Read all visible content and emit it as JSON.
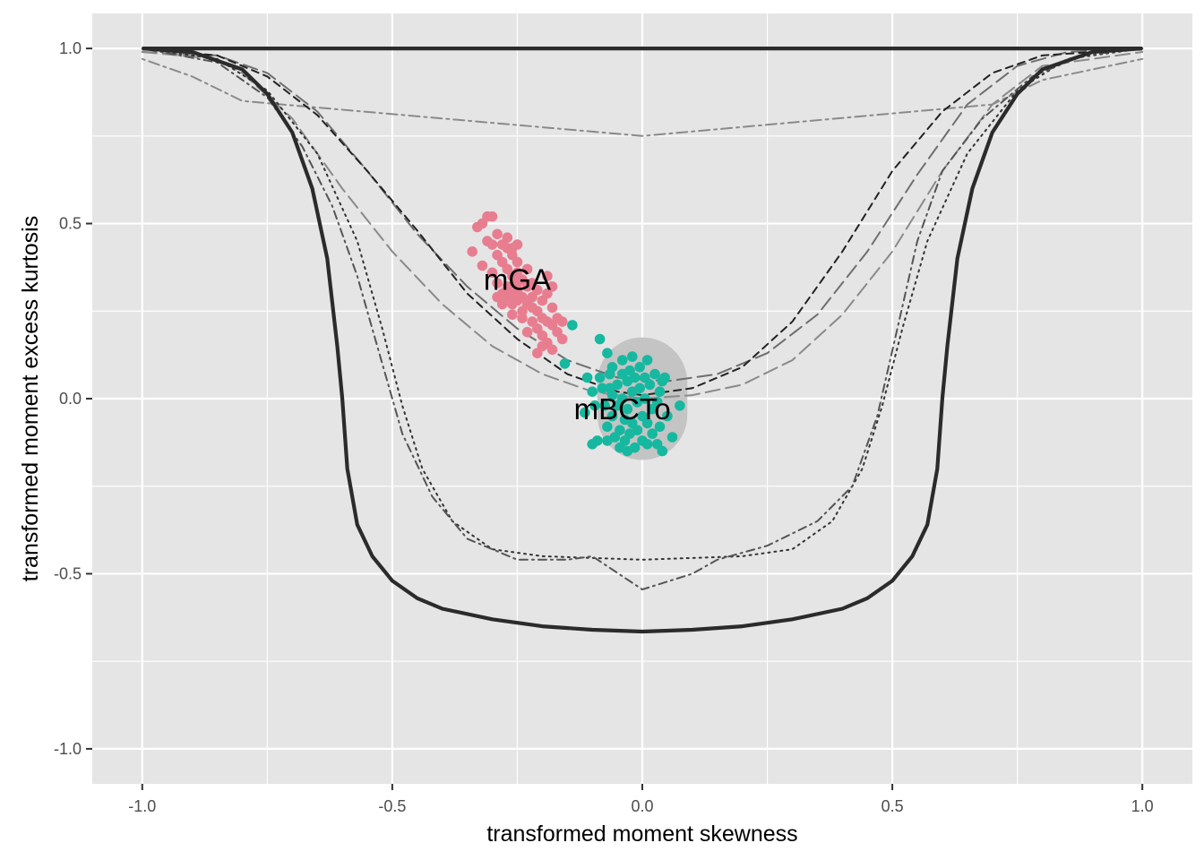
{
  "chart_data": {
    "type": "scatter",
    "xlabel": "transformed moment skewness",
    "ylabel": "transformed moment excess kurtosis",
    "xlim": [
      -1.1,
      1.1
    ],
    "ylim": [
      -1.1,
      1.1
    ],
    "x_ticks": [
      -1.0,
      -0.5,
      0.0,
      0.5,
      1.0
    ],
    "y_ticks": [
      -1.0,
      -0.5,
      0.0,
      0.5,
      1.0
    ],
    "x_tick_labels": [
      "-1.0",
      "-0.5",
      "0.0",
      "0.5",
      "1.0"
    ],
    "y_tick_labels": [
      "-1.0",
      "-0.5",
      "0.0",
      "0.5",
      "1.0"
    ],
    "grid": true,
    "legend": "none",
    "colors": {
      "panel": "#e5e5e5",
      "grid": "#ffffff",
      "mGA": "#e87d90",
      "mBCTo": "#16b8a0",
      "region": "#c4c4c4",
      "boundary": "#2b2b2b",
      "reference": "#555555"
    },
    "annotations": [
      {
        "label": "mGA",
        "x": -0.25,
        "y": 0.34
      },
      {
        "label": "mBCTo",
        "x": -0.04,
        "y": -0.03
      }
    ],
    "shaded_region": {
      "x_center": 0.0,
      "y_center": 0.0,
      "x_halfwidth": 0.09,
      "y_halfwidth": 0.175
    },
    "boundaries": [
      {
        "style": "solid",
        "points": [
          [
            -1.0,
            1.0
          ],
          [
            1.0,
            1.0
          ]
        ]
      },
      {
        "style": "solid",
        "points": [
          [
            -1.0,
            1.0
          ],
          [
            -0.9,
            0.99
          ],
          [
            -0.8,
            0.94
          ],
          [
            -0.75,
            0.87
          ],
          [
            -0.7,
            0.76
          ],
          [
            -0.66,
            0.6
          ],
          [
            -0.63,
            0.4
          ],
          [
            -0.61,
            0.15
          ],
          [
            -0.6,
            0.0
          ],
          [
            -0.59,
            -0.2
          ],
          [
            -0.57,
            -0.36
          ],
          [
            -0.54,
            -0.45
          ],
          [
            -0.5,
            -0.52
          ],
          [
            -0.45,
            -0.57
          ],
          [
            -0.4,
            -0.6
          ],
          [
            -0.3,
            -0.63
          ],
          [
            -0.2,
            -0.65
          ],
          [
            -0.1,
            -0.66
          ],
          [
            0.0,
            -0.665
          ],
          [
            0.1,
            -0.66
          ],
          [
            0.2,
            -0.65
          ],
          [
            0.3,
            -0.63
          ],
          [
            0.4,
            -0.6
          ],
          [
            0.45,
            -0.57
          ],
          [
            0.5,
            -0.52
          ],
          [
            0.54,
            -0.45
          ],
          [
            0.57,
            -0.36
          ],
          [
            0.59,
            -0.2
          ],
          [
            0.6,
            0.0
          ],
          [
            0.61,
            0.15
          ],
          [
            0.63,
            0.4
          ],
          [
            0.66,
            0.6
          ],
          [
            0.7,
            0.76
          ],
          [
            0.75,
            0.87
          ],
          [
            0.8,
            0.94
          ],
          [
            0.9,
            0.99
          ],
          [
            1.0,
            1.0
          ]
        ]
      }
    ],
    "reference_curves": [
      {
        "style": "dashdot",
        "color": "#8a8a8a",
        "points": [
          [
            -1.0,
            0.97
          ],
          [
            -0.9,
            0.92
          ],
          [
            -0.8,
            0.85
          ],
          [
            0.0,
            0.75
          ],
          [
            0.7,
            0.84
          ],
          [
            0.8,
            0.91
          ],
          [
            1.0,
            0.97
          ]
        ]
      },
      {
        "style": "longdash",
        "color": "#6f6f6f",
        "points": [
          [
            -1.0,
            0.99
          ],
          [
            -0.85,
            0.98
          ],
          [
            -0.75,
            0.93
          ],
          [
            -0.65,
            0.82
          ],
          [
            -0.55,
            0.65
          ],
          [
            -0.45,
            0.47
          ],
          [
            -0.35,
            0.32
          ],
          [
            -0.25,
            0.2
          ],
          [
            -0.15,
            0.11
          ],
          [
            -0.05,
            0.06
          ],
          [
            0.05,
            0.05
          ],
          [
            0.15,
            0.07
          ],
          [
            0.25,
            0.13
          ],
          [
            0.35,
            0.24
          ],
          [
            0.45,
            0.42
          ],
          [
            0.55,
            0.64
          ],
          [
            0.65,
            0.84
          ],
          [
            0.75,
            0.95
          ],
          [
            0.85,
            0.99
          ],
          [
            1.0,
            1.0
          ]
        ]
      },
      {
        "style": "dashed",
        "color": "#222222",
        "points": [
          [
            -1.0,
            1.0
          ],
          [
            -0.85,
            0.98
          ],
          [
            -0.75,
            0.92
          ],
          [
            -0.65,
            0.81
          ],
          [
            -0.55,
            0.65
          ],
          [
            -0.45,
            0.48
          ],
          [
            -0.35,
            0.3
          ],
          [
            -0.25,
            0.17
          ],
          [
            -0.15,
            0.07
          ],
          [
            -0.05,
            0.02
          ],
          [
            0.0,
            0.01
          ],
          [
            0.1,
            0.03
          ],
          [
            0.2,
            0.09
          ],
          [
            0.3,
            0.22
          ],
          [
            0.4,
            0.42
          ],
          [
            0.5,
            0.65
          ],
          [
            0.6,
            0.82
          ],
          [
            0.7,
            0.93
          ],
          [
            0.8,
            0.98
          ],
          [
            1.0,
            1.0
          ]
        ]
      },
      {
        "style": "longdash",
        "color": "#8a8a8a",
        "points": [
          [
            -1.0,
            0.99
          ],
          [
            -0.85,
            0.97
          ],
          [
            -0.8,
            0.93
          ],
          [
            -0.7,
            0.8
          ],
          [
            -0.6,
            0.6
          ],
          [
            -0.5,
            0.42
          ],
          [
            -0.4,
            0.27
          ],
          [
            -0.3,
            0.15
          ],
          [
            -0.2,
            0.07
          ],
          [
            -0.1,
            0.02
          ],
          [
            0.0,
            0.0
          ],
          [
            0.1,
            0.01
          ],
          [
            0.2,
            0.04
          ],
          [
            0.3,
            0.11
          ],
          [
            0.4,
            0.24
          ],
          [
            0.5,
            0.42
          ],
          [
            0.6,
            0.65
          ],
          [
            0.7,
            0.84
          ],
          [
            0.8,
            0.95
          ],
          [
            1.0,
            0.99
          ]
        ]
      },
      {
        "style": "dotted",
        "color": "#333333",
        "points": [
          [
            -1.0,
            1.0
          ],
          [
            -0.85,
            0.97
          ],
          [
            -0.75,
            0.88
          ],
          [
            -0.65,
            0.7
          ],
          [
            -0.57,
            0.45
          ],
          [
            -0.52,
            0.2
          ],
          [
            -0.48,
            -0.02
          ],
          [
            -0.44,
            -0.2
          ],
          [
            -0.38,
            -0.35
          ],
          [
            -0.3,
            -0.43
          ],
          [
            -0.2,
            -0.45
          ],
          [
            0.0,
            -0.46
          ],
          [
            0.2,
            -0.45
          ],
          [
            0.3,
            -0.43
          ],
          [
            0.38,
            -0.35
          ],
          [
            0.44,
            -0.2
          ],
          [
            0.48,
            -0.02
          ],
          [
            0.52,
            0.2
          ],
          [
            0.57,
            0.45
          ],
          [
            0.65,
            0.7
          ],
          [
            0.75,
            0.88
          ],
          [
            0.85,
            0.97
          ],
          [
            1.0,
            1.0
          ]
        ]
      },
      {
        "style": "dotdash",
        "color": "#555555",
        "points": [
          [
            -1.0,
            1.0
          ],
          [
            -0.85,
            0.96
          ],
          [
            -0.75,
            0.86
          ],
          [
            -0.68,
            0.72
          ],
          [
            -0.62,
            0.55
          ],
          [
            -0.57,
            0.35
          ],
          [
            -0.52,
            0.1
          ],
          [
            -0.48,
            -0.1
          ],
          [
            -0.42,
            -0.28
          ],
          [
            -0.35,
            -0.4
          ],
          [
            -0.25,
            -0.46
          ],
          [
            -0.15,
            -0.46
          ],
          [
            -0.1,
            -0.45
          ],
          [
            0.0,
            -0.545
          ],
          [
            0.1,
            -0.5
          ],
          [
            0.15,
            -0.46
          ],
          [
            0.25,
            -0.42
          ],
          [
            0.35,
            -0.35
          ],
          [
            0.42,
            -0.25
          ],
          [
            0.47,
            -0.05
          ],
          [
            0.51,
            0.2
          ],
          [
            0.55,
            0.45
          ],
          [
            0.6,
            0.65
          ],
          [
            0.68,
            0.8
          ],
          [
            0.78,
            0.92
          ],
          [
            0.88,
            0.98
          ],
          [
            1.0,
            1.0
          ]
        ]
      }
    ],
    "series": [
      {
        "name": "mGA",
        "points": [
          [
            -0.34,
            0.42
          ],
          [
            -0.33,
            0.49
          ],
          [
            -0.32,
            0.5
          ],
          [
            -0.31,
            0.52
          ],
          [
            -0.3,
            0.52
          ],
          [
            -0.32,
            0.38
          ],
          [
            -0.31,
            0.45
          ],
          [
            -0.3,
            0.44
          ],
          [
            -0.29,
            0.47
          ],
          [
            -0.29,
            0.41
          ],
          [
            -0.28,
            0.44
          ],
          [
            -0.28,
            0.39
          ],
          [
            -0.27,
            0.46
          ],
          [
            -0.27,
            0.43
          ],
          [
            -0.27,
            0.37
          ],
          [
            -0.26,
            0.43
          ],
          [
            -0.26,
            0.41
          ],
          [
            -0.26,
            0.35
          ],
          [
            -0.25,
            0.44
          ],
          [
            -0.25,
            0.39
          ],
          [
            -0.25,
            0.31
          ],
          [
            -0.3,
            0.36
          ],
          [
            -0.29,
            0.33
          ],
          [
            -0.28,
            0.3
          ],
          [
            -0.27,
            0.32
          ],
          [
            -0.27,
            0.29
          ],
          [
            -0.26,
            0.3
          ],
          [
            -0.26,
            0.27
          ],
          [
            -0.25,
            0.36
          ],
          [
            -0.25,
            0.33
          ],
          [
            -0.24,
            0.34
          ],
          [
            -0.24,
            0.29
          ],
          [
            -0.24,
            0.25
          ],
          [
            -0.23,
            0.37
          ],
          [
            -0.23,
            0.32
          ],
          [
            -0.23,
            0.27
          ],
          [
            -0.22,
            0.33
          ],
          [
            -0.22,
            0.29
          ],
          [
            -0.22,
            0.22
          ],
          [
            -0.21,
            0.31
          ],
          [
            -0.21,
            0.25
          ],
          [
            -0.21,
            0.2
          ],
          [
            -0.2,
            0.28
          ],
          [
            -0.2,
            0.23
          ],
          [
            -0.2,
            0.18
          ],
          [
            -0.19,
            0.3
          ],
          [
            -0.19,
            0.22
          ],
          [
            -0.19,
            0.16
          ],
          [
            -0.18,
            0.26
          ],
          [
            -0.18,
            0.21
          ],
          [
            -0.18,
            0.14
          ],
          [
            -0.17,
            0.23
          ],
          [
            -0.17,
            0.19
          ],
          [
            -0.16,
            0.22
          ],
          [
            -0.16,
            0.17
          ],
          [
            -0.2,
            0.15
          ],
          [
            -0.21,
            0.13
          ],
          [
            -0.22,
            0.26
          ],
          [
            -0.24,
            0.23
          ],
          [
            -0.26,
            0.24
          ],
          [
            -0.28,
            0.27
          ],
          [
            -0.29,
            0.29
          ],
          [
            -0.23,
            0.19
          ],
          [
            -0.19,
            0.35
          ],
          [
            -0.18,
            0.32
          ],
          [
            -0.25,
            0.28
          ]
        ]
      },
      {
        "name": "mBCTo",
        "points": [
          [
            -0.14,
            0.21
          ],
          [
            -0.085,
            0.17
          ],
          [
            -0.155,
            0.1
          ],
          [
            -0.07,
            0.13
          ],
          [
            -0.11,
            0.06
          ],
          [
            -0.1,
            0.02
          ],
          [
            -0.115,
            -0.04
          ],
          [
            -0.1,
            -0.13
          ],
          [
            -0.09,
            -0.12
          ],
          [
            -0.085,
            0.06
          ],
          [
            -0.08,
            0.03
          ],
          [
            -0.075,
            -0.02
          ],
          [
            -0.07,
            -0.08
          ],
          [
            -0.065,
            0.07
          ],
          [
            -0.06,
            0.01
          ],
          [
            -0.06,
            -0.05
          ],
          [
            -0.055,
            -0.11
          ],
          [
            -0.05,
            0.04
          ],
          [
            -0.05,
            -0.02
          ],
          [
            -0.045,
            -0.09
          ],
          [
            -0.045,
            -0.14
          ],
          [
            -0.04,
            0.07
          ],
          [
            -0.04,
            0.0
          ],
          [
            -0.035,
            -0.06
          ],
          [
            -0.035,
            -0.12
          ],
          [
            -0.03,
            0.05
          ],
          [
            -0.03,
            -0.03
          ],
          [
            -0.025,
            0.08
          ],
          [
            -0.025,
            -0.1
          ],
          [
            -0.02,
            0.02
          ],
          [
            -0.02,
            -0.07
          ],
          [
            -0.015,
            -0.14
          ],
          [
            -0.015,
            0.06
          ],
          [
            -0.01,
            -0.01
          ],
          [
            -0.01,
            -0.09
          ],
          [
            -0.005,
            0.09
          ],
          [
            -0.005,
            0.03
          ],
          [
            0.0,
            -0.05
          ],
          [
            0.0,
            -0.12
          ],
          [
            0.005,
            0.06
          ],
          [
            0.005,
            0.0
          ],
          [
            0.01,
            -0.07
          ],
          [
            0.01,
            -0.13
          ],
          [
            0.015,
            0.04
          ],
          [
            0.02,
            -0.03
          ],
          [
            0.02,
            -0.1
          ],
          [
            0.025,
            0.07
          ],
          [
            0.03,
            -0.01
          ],
          [
            0.03,
            -0.13
          ],
          [
            0.035,
            0.02
          ],
          [
            0.035,
            -0.08
          ],
          [
            0.04,
            -0.15
          ],
          [
            0.045,
            0.06
          ],
          [
            0.05,
            -0.05
          ],
          [
            0.06,
            -0.11
          ],
          [
            0.075,
            -0.02
          ],
          [
            -0.06,
            0.09
          ],
          [
            -0.04,
            0.11
          ],
          [
            -0.02,
            0.12
          ],
          [
            0.01,
            0.11
          ],
          [
            -0.095,
            -0.02
          ],
          [
            -0.07,
            -0.12
          ],
          [
            -0.03,
            -0.15
          ],
          [
            0.04,
            0.05
          ],
          [
            -0.065,
            0.03
          ]
        ]
      }
    ]
  }
}
